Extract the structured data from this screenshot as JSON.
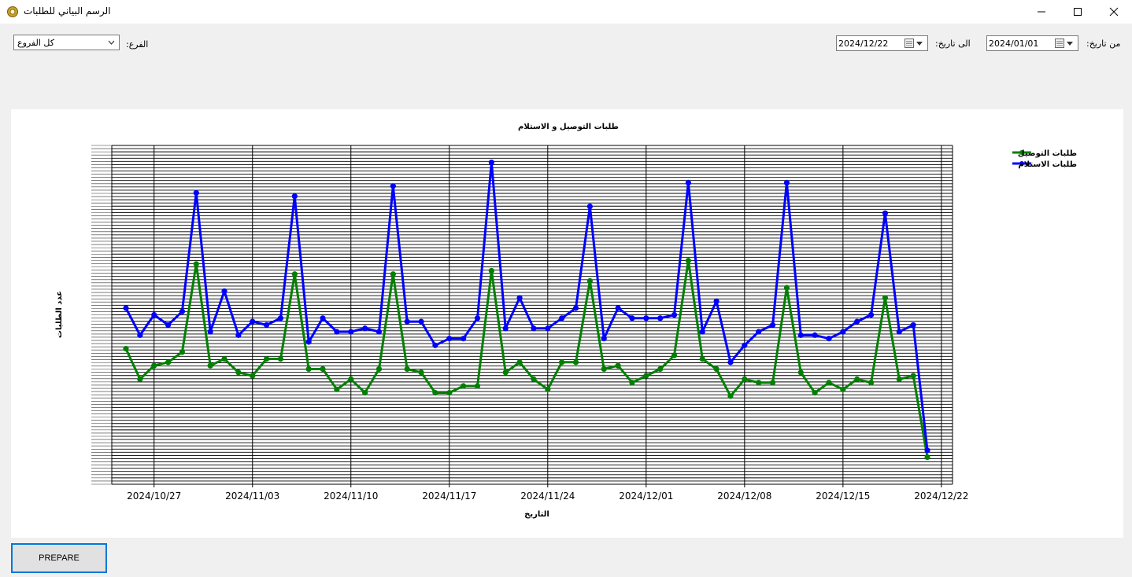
{
  "window": {
    "title": "الرسم البياني للطلبات",
    "app_icon": "gear-app-icon",
    "controls": [
      "minimize-icon",
      "maximize-icon",
      "close-icon"
    ]
  },
  "filters": {
    "from_label": "من تاريخ:",
    "from_value": "2024/01/01",
    "to_label": "الى تاريخ:",
    "to_value": "2024/12/22",
    "branch_label": "الفرع:",
    "branch_value": "كل الفروع"
  },
  "actions": {
    "prepare_label": "PREPARE"
  },
  "chart_data": {
    "type": "line",
    "title": "طلبات التوصيل و الاستلام",
    "xlabel": "التاريخ",
    "ylabel": "عدد الطلبات",
    "grid": true,
    "legend_position": "top-right",
    "x_start": "2024/10/25",
    "x_ticks": [
      "2024/10/27",
      "2024/11/03",
      "2024/11/10",
      "2024/11/17",
      "2024/11/24",
      "2024/12/01",
      "2024/12/08",
      "2024/12/15",
      "2024/12/22"
    ],
    "ylim": [
      0,
      100
    ],
    "series": [
      {
        "name": "طلبات التوصيل",
        "color": "#008000",
        "values": [
          40,
          31,
          35,
          36,
          39,
          65,
          35,
          37,
          33,
          32,
          37,
          37,
          62,
          34,
          34,
          28,
          31,
          27,
          34,
          62,
          34,
          33,
          27,
          27,
          29,
          29,
          63,
          33,
          36,
          31,
          28,
          36,
          36,
          60,
          34,
          35,
          30,
          32,
          34,
          38,
          66,
          37,
          34,
          26,
          31,
          30,
          30,
          58,
          33,
          27,
          30,
          28,
          31,
          30,
          55,
          31,
          32,
          8
        ]
      },
      {
        "name": "طلبات الاستلام",
        "color": "#0000ff",
        "values": [
          52,
          44,
          50,
          47,
          51,
          86,
          45,
          57,
          44,
          48,
          47,
          49,
          85,
          42,
          49,
          45,
          45,
          46,
          45,
          88,
          48,
          48,
          41,
          43,
          43,
          49,
          95,
          46,
          55,
          46,
          46,
          49,
          52,
          82,
          43,
          52,
          49,
          49,
          49,
          50,
          89,
          45,
          54,
          36,
          41,
          45,
          47,
          89,
          44,
          44,
          43,
          45,
          48,
          50,
          80,
          45,
          47,
          10
        ]
      }
    ]
  }
}
